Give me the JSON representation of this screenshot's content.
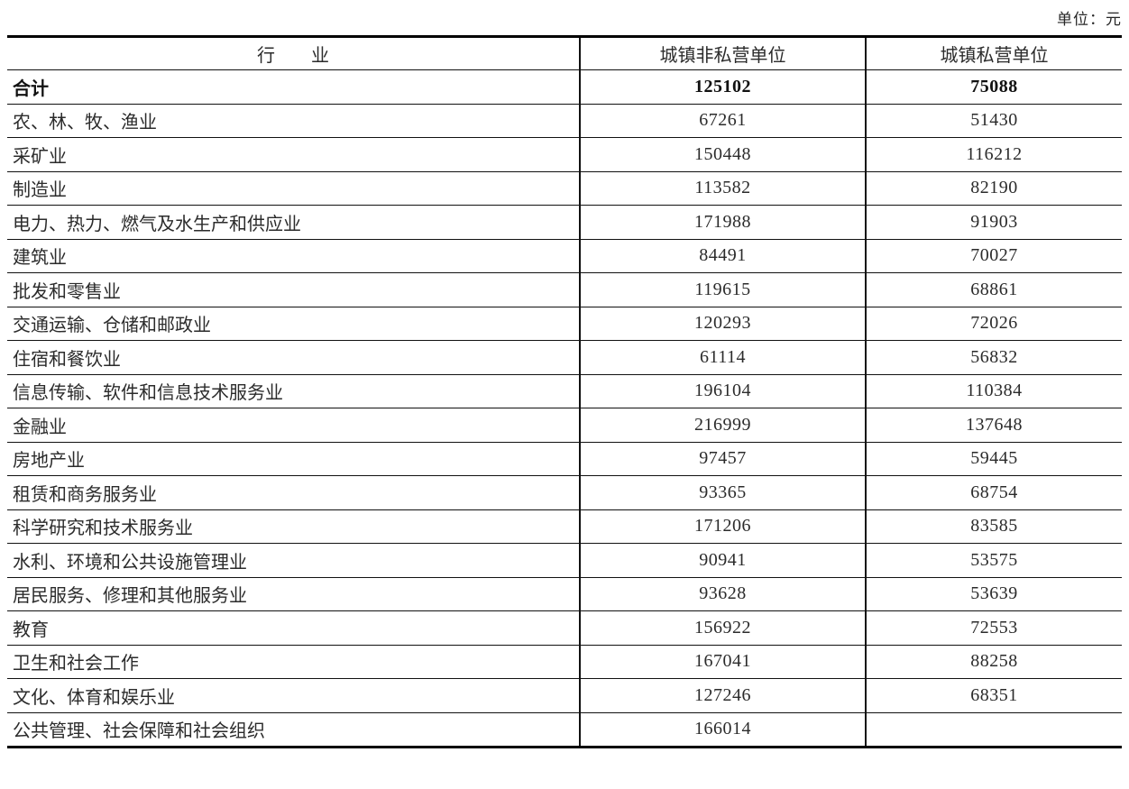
{
  "meta": {
    "unit_label": "单位：元"
  },
  "table": {
    "columns": [
      "行　　业",
      "城镇非私营单位",
      "城镇私营单位"
    ],
    "rows": [
      {
        "bold": true,
        "industry": "合计",
        "non_private": "125102",
        "private": "75088"
      },
      {
        "bold": false,
        "industry": "农、林、牧、渔业",
        "non_private": "67261",
        "private": "51430"
      },
      {
        "bold": false,
        "industry": "采矿业",
        "non_private": "150448",
        "private": "116212"
      },
      {
        "bold": false,
        "industry": "制造业",
        "non_private": "113582",
        "private": "82190"
      },
      {
        "bold": false,
        "industry": "电力、热力、燃气及水生产和供应业",
        "non_private": "171988",
        "private": "91903"
      },
      {
        "bold": false,
        "industry": "建筑业",
        "non_private": "84491",
        "private": "70027"
      },
      {
        "bold": false,
        "industry": "批发和零售业",
        "non_private": "119615",
        "private": "68861"
      },
      {
        "bold": false,
        "industry": "交通运输、仓储和邮政业",
        "non_private": "120293",
        "private": "72026"
      },
      {
        "bold": false,
        "industry": "住宿和餐饮业",
        "non_private": "61114",
        "private": "56832"
      },
      {
        "bold": false,
        "industry": "信息传输、软件和信息技术服务业",
        "non_private": "196104",
        "private": "110384"
      },
      {
        "bold": false,
        "industry": "金融业",
        "non_private": "216999",
        "private": "137648"
      },
      {
        "bold": false,
        "industry": "房地产业",
        "non_private": "97457",
        "private": "59445"
      },
      {
        "bold": false,
        "industry": "租赁和商务服务业",
        "non_private": "93365",
        "private": "68754"
      },
      {
        "bold": false,
        "industry": "科学研究和技术服务业",
        "non_private": "171206",
        "private": "83585"
      },
      {
        "bold": false,
        "industry": "水利、环境和公共设施管理业",
        "non_private": "90941",
        "private": "53575"
      },
      {
        "bold": false,
        "industry": "居民服务、修理和其他服务业",
        "non_private": "93628",
        "private": "53639"
      },
      {
        "bold": false,
        "industry": "教育",
        "non_private": "156922",
        "private": "72553"
      },
      {
        "bold": false,
        "industry": "卫生和社会工作",
        "non_private": "167041",
        "private": "88258"
      },
      {
        "bold": false,
        "industry": "文化、体育和娱乐业",
        "non_private": "127246",
        "private": "68351"
      },
      {
        "bold": false,
        "industry": "公共管理、社会保障和社会组织",
        "non_private": "166014",
        "private": ""
      }
    ]
  },
  "chart_data": {
    "type": "table",
    "title": "",
    "unit": "元",
    "columns": [
      "行业",
      "城镇非私营单位",
      "城镇私营单位"
    ],
    "series": [
      {
        "name": "城镇非私营单位",
        "values": [
          125102,
          67261,
          150448,
          113582,
          171988,
          84491,
          119615,
          120293,
          61114,
          196104,
          216999,
          97457,
          93365,
          171206,
          90941,
          93628,
          156922,
          167041,
          127246,
          166014
        ]
      },
      {
        "name": "城镇私营单位",
        "values": [
          75088,
          51430,
          116212,
          82190,
          91903,
          70027,
          68861,
          72026,
          56832,
          110384,
          137648,
          59445,
          68754,
          83585,
          53575,
          53639,
          72553,
          88258,
          68351,
          null
        ]
      }
    ],
    "categories": [
      "合计",
      "农、林、牧、渔业",
      "采矿业",
      "制造业",
      "电力、热力、燃气及水生产和供应业",
      "建筑业",
      "批发和零售业",
      "交通运输、仓储和邮政业",
      "住宿和餐饮业",
      "信息传输、软件和信息技术服务业",
      "金融业",
      "房地产业",
      "租赁和商务服务业",
      "科学研究和技术服务业",
      "水利、环境和公共设施管理业",
      "居民服务、修理和其他服务业",
      "教育",
      "卫生和社会工作",
      "文化、体育和娱乐业",
      "公共管理、社会保障和社会组织"
    ]
  }
}
